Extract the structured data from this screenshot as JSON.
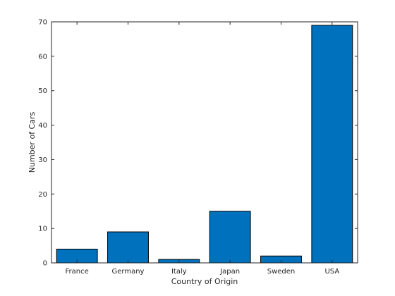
{
  "chart_data": {
    "type": "bar",
    "title": "",
    "categories": [
      "France",
      "Germany",
      "Italy",
      "Japan",
      "Sweden",
      "USA"
    ],
    "values": [
      4,
      9,
      1,
      15,
      2,
      69
    ],
    "xlabel": "Country of Origin",
    "ylabel": "Number of Cars",
    "ylim": [
      0,
      70
    ],
    "yticks": [
      0,
      10,
      20,
      30,
      40,
      50,
      60,
      70
    ],
    "grid": false,
    "legend": "none",
    "bar_color": "#0072BD",
    "bar_edge_color": "#000000"
  }
}
